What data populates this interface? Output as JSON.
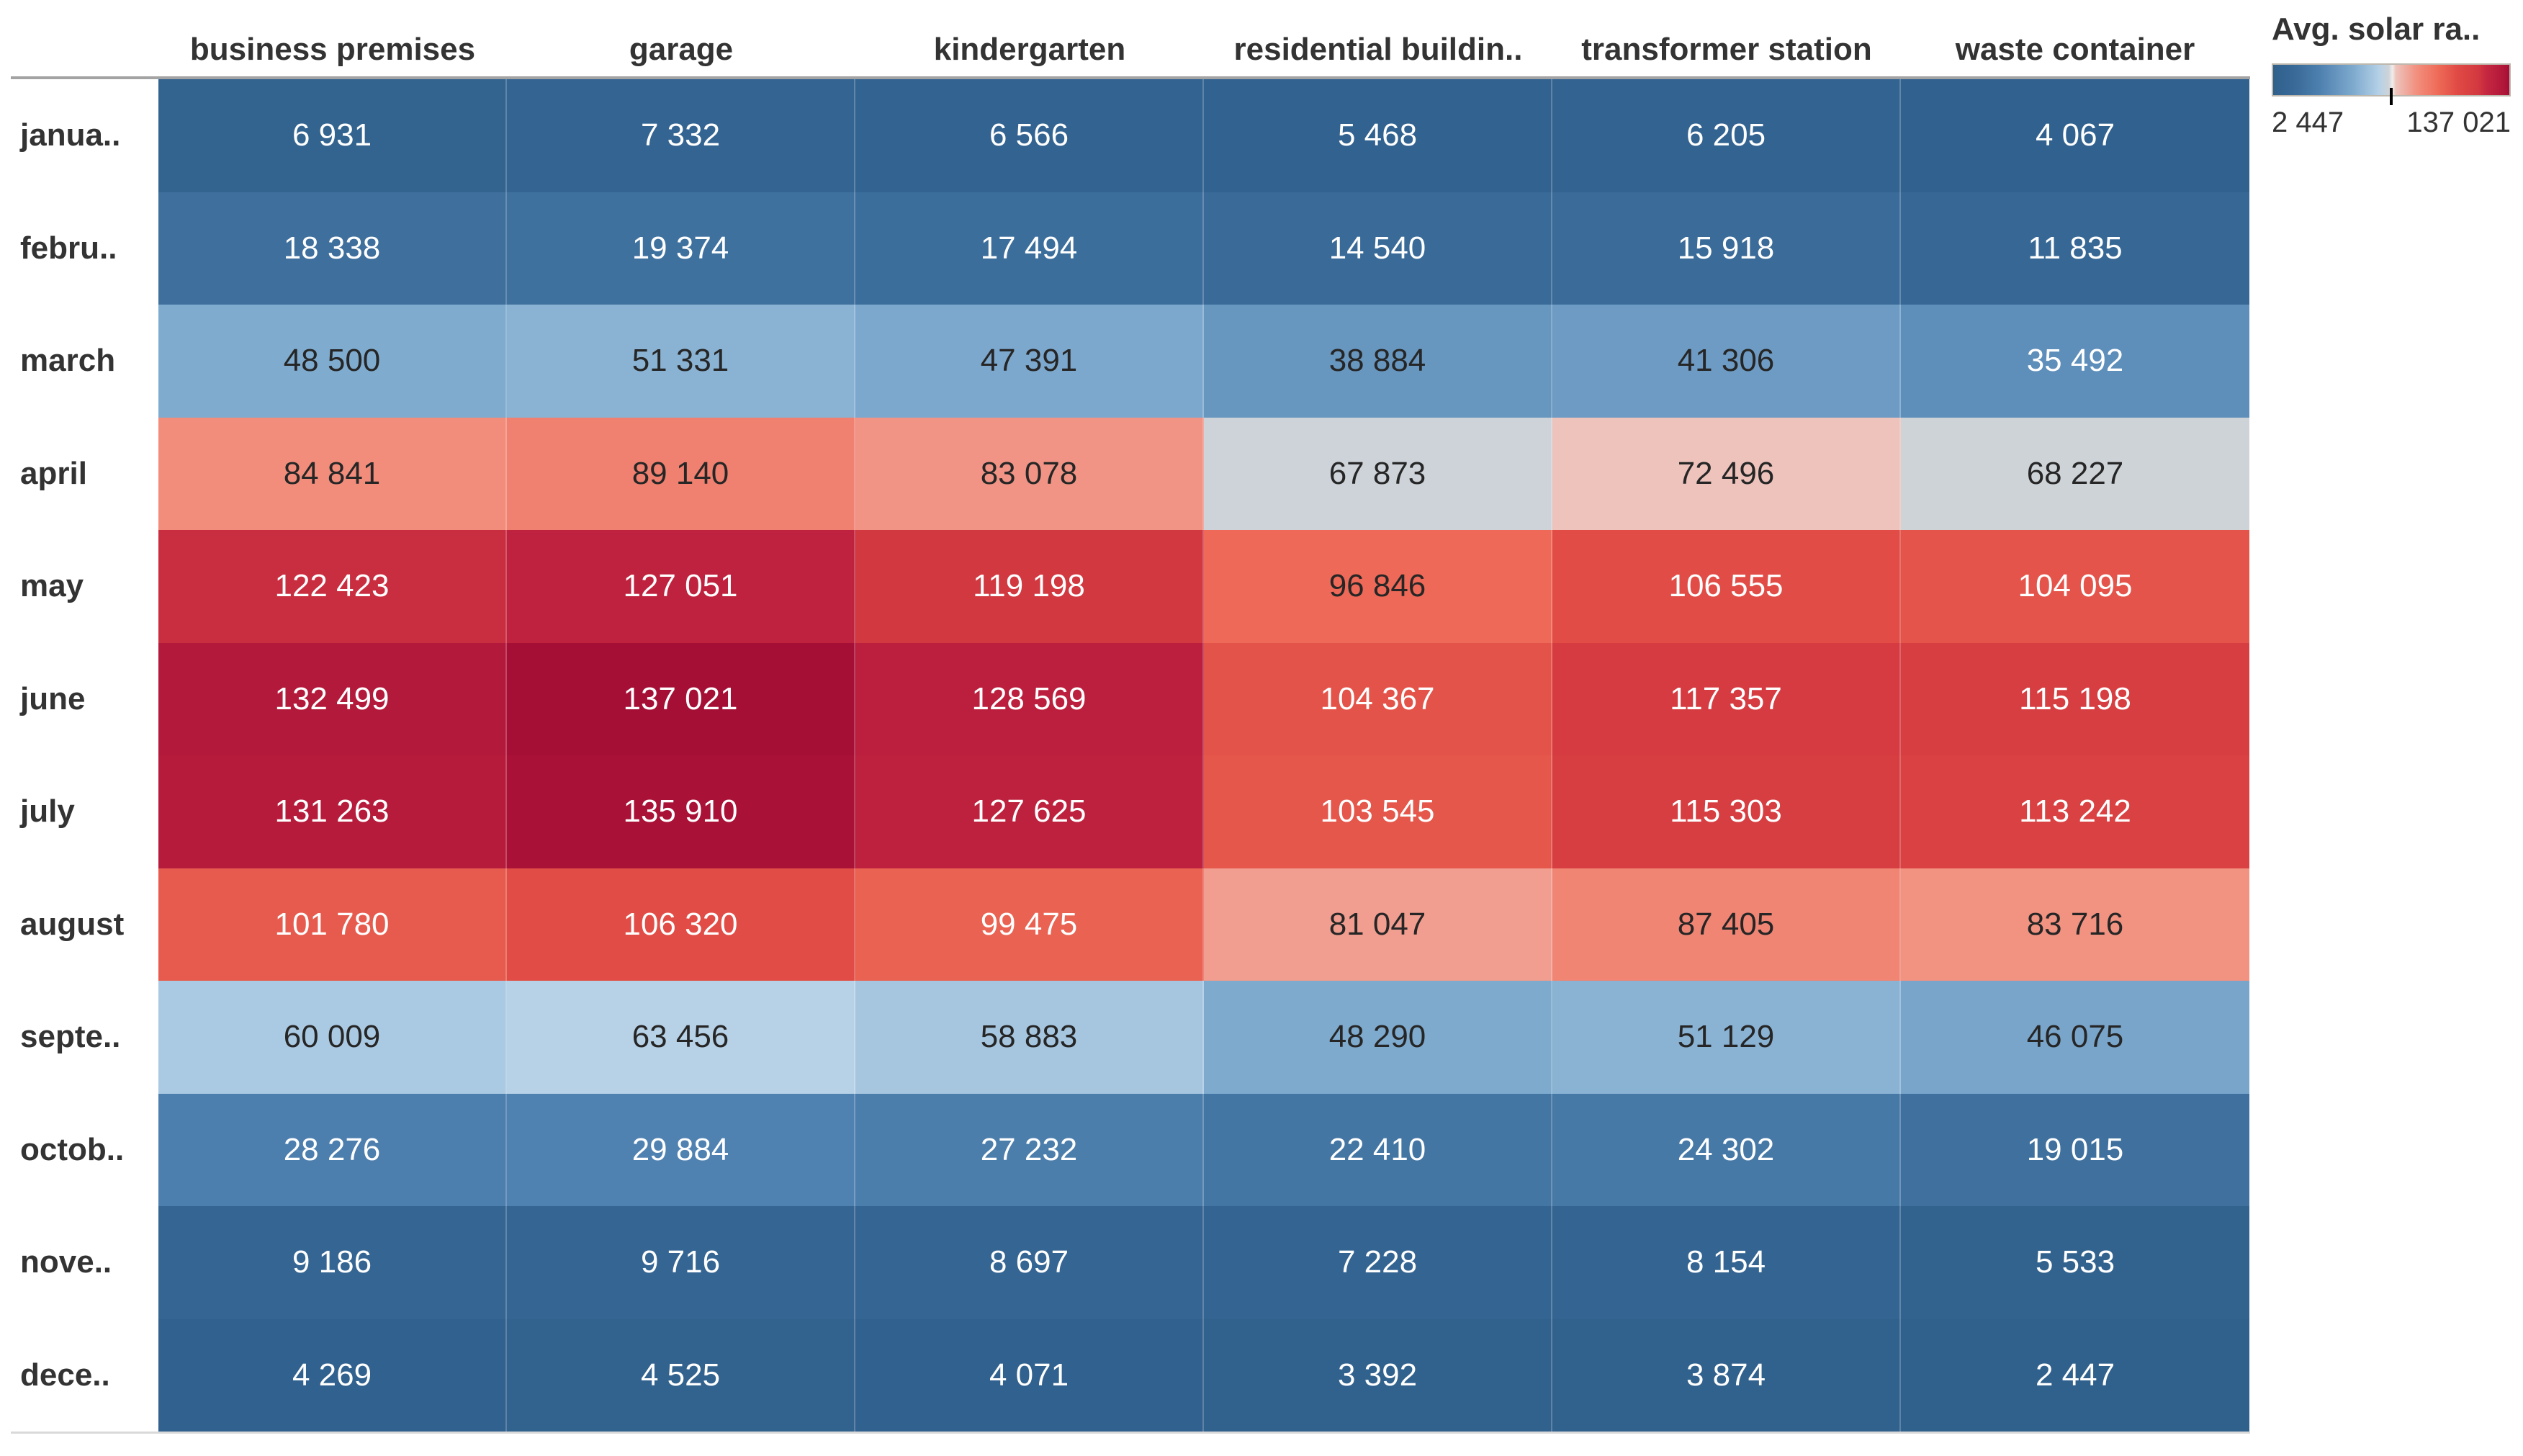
{
  "theme": {
    "background": "#ffffff",
    "header_text": "#333333",
    "cell_text_dark": "#262626",
    "cell_text_light": "#ffffff",
    "top_rule": "#a3a3a3",
    "bottom_rule": "#d9d9d9",
    "legend_border": "#bdb8ae",
    "tick": "#000000",
    "text_luminance_threshold": 0.54
  },
  "chart_data": {
    "type": "heatmap",
    "title": "",
    "columns": [
      "business premises",
      "garage",
      "kindergarten",
      "residential buildin..",
      "transformer station",
      "waste container"
    ],
    "rows": [
      "janua..",
      "febru..",
      "march",
      "april",
      "may",
      "june",
      "july",
      "august",
      "septe..",
      "octob..",
      "nove..",
      "dece.."
    ],
    "values": [
      [
        6931,
        7332,
        6566,
        5468,
        6205,
        4067
      ],
      [
        18338,
        19374,
        17494,
        14540,
        15918,
        11835
      ],
      [
        48500,
        51331,
        47391,
        38884,
        41306,
        35492
      ],
      [
        84841,
        89140,
        83078,
        67873,
        72496,
        68227
      ],
      [
        122423,
        127051,
        119198,
        96846,
        106555,
        104095
      ],
      [
        132499,
        137021,
        128569,
        104367,
        117357,
        115198
      ],
      [
        131263,
        135910,
        127625,
        103545,
        115303,
        113242
      ],
      [
        101780,
        106320,
        99475,
        81047,
        87405,
        83716
      ],
      [
        60009,
        63456,
        58883,
        48290,
        51129,
        46075
      ],
      [
        28276,
        29884,
        27232,
        22410,
        24302,
        19015
      ],
      [
        9186,
        9716,
        8697,
        7228,
        8154,
        5533
      ],
      [
        4269,
        4525,
        4071,
        3392,
        3874,
        2447
      ]
    ],
    "legend": {
      "title": "Avg. solar ra..",
      "min": 2447,
      "max": 137021,
      "min_label": "2 447",
      "max_label": "137 021",
      "position": "top-right",
      "midpoint_tick": true
    },
    "color_scale": {
      "stops": [
        [
          0.0,
          "#30608C"
        ],
        [
          0.1,
          "#3A6B99"
        ],
        [
          0.2,
          "#4F81B0"
        ],
        [
          0.34,
          "#7EAACE"
        ],
        [
          0.45,
          "#B5D1E7"
        ],
        [
          0.49,
          "#CFD3D8"
        ],
        [
          0.505,
          "#F0EEEC"
        ],
        [
          0.52,
          "#EDC3BC"
        ],
        [
          0.61,
          "#F28E7D"
        ],
        [
          0.7,
          "#EE6A57"
        ],
        [
          0.78,
          "#E04A44"
        ],
        [
          0.87,
          "#D23840"
        ],
        [
          0.9,
          "#C62840"
        ],
        [
          0.97,
          "#B2183A"
        ],
        [
          1.0,
          "#A50F36"
        ]
      ]
    }
  }
}
